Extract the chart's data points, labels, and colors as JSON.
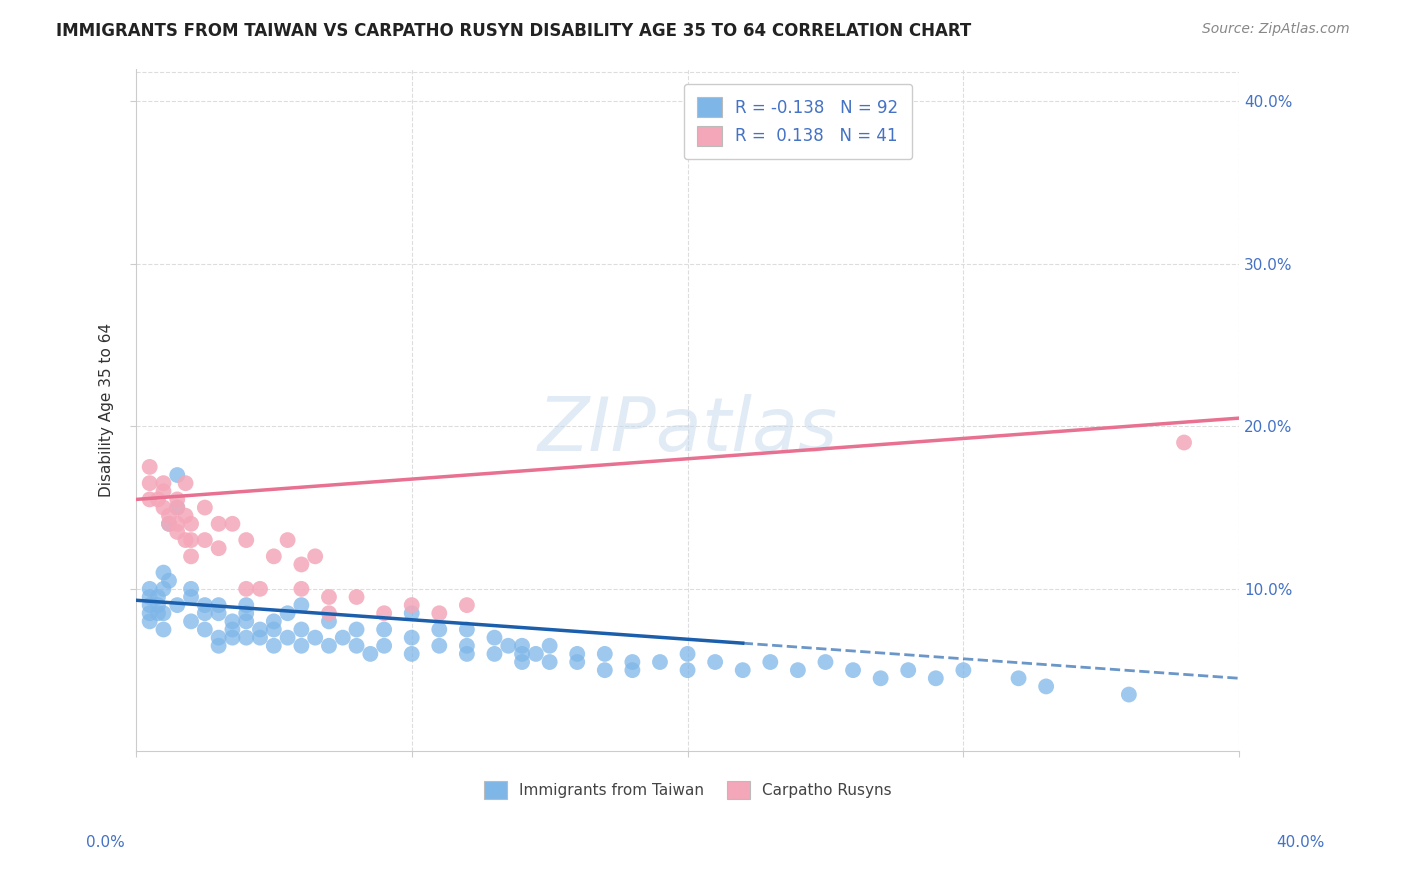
{
  "title": "IMMIGRANTS FROM TAIWAN VS CARPATHO RUSYN DISABILITY AGE 35 TO 64 CORRELATION CHART",
  "source": "Source: ZipAtlas.com",
  "ylabel": "Disability Age 35 to 64",
  "xlim": [
    0.0,
    0.4
  ],
  "ylim": [
    0.0,
    0.42
  ],
  "taiwan_color": "#7EB6E8",
  "carpatho_color": "#F4A7B9",
  "taiwan_line_color": "#1B5EAB",
  "carpatho_line_color": "#E87090",
  "grid_color": "#DDDDDD",
  "taiwan_scatter": {
    "x": [
      0.01,
      0.01,
      0.015,
      0.02,
      0.02,
      0.02,
      0.025,
      0.025,
      0.025,
      0.03,
      0.03,
      0.03,
      0.03,
      0.035,
      0.035,
      0.035,
      0.04,
      0.04,
      0.04,
      0.04,
      0.045,
      0.045,
      0.05,
      0.05,
      0.05,
      0.055,
      0.055,
      0.06,
      0.06,
      0.06,
      0.065,
      0.07,
      0.07,
      0.075,
      0.08,
      0.08,
      0.085,
      0.09,
      0.09,
      0.1,
      0.1,
      0.1,
      0.11,
      0.11,
      0.12,
      0.12,
      0.12,
      0.13,
      0.13,
      0.135,
      0.14,
      0.14,
      0.14,
      0.145,
      0.15,
      0.15,
      0.16,
      0.16,
      0.17,
      0.17,
      0.18,
      0.18,
      0.19,
      0.2,
      0.2,
      0.21,
      0.22,
      0.23,
      0.24,
      0.25,
      0.26,
      0.27,
      0.28,
      0.29,
      0.3,
      0.32,
      0.33,
      0.005,
      0.005,
      0.005,
      0.005,
      0.005,
      0.008,
      0.008,
      0.008,
      0.01,
      0.01,
      0.012,
      0.012,
      0.015,
      0.015,
      0.36
    ],
    "y": [
      0.085,
      0.075,
      0.09,
      0.08,
      0.1,
      0.095,
      0.085,
      0.09,
      0.075,
      0.07,
      0.085,
      0.065,
      0.09,
      0.075,
      0.08,
      0.07,
      0.07,
      0.085,
      0.09,
      0.08,
      0.075,
      0.07,
      0.065,
      0.075,
      0.08,
      0.07,
      0.085,
      0.065,
      0.075,
      0.09,
      0.07,
      0.065,
      0.08,
      0.07,
      0.065,
      0.075,
      0.06,
      0.065,
      0.075,
      0.06,
      0.07,
      0.085,
      0.065,
      0.075,
      0.06,
      0.065,
      0.075,
      0.06,
      0.07,
      0.065,
      0.06,
      0.065,
      0.055,
      0.06,
      0.055,
      0.065,
      0.06,
      0.055,
      0.05,
      0.06,
      0.055,
      0.05,
      0.055,
      0.05,
      0.06,
      0.055,
      0.05,
      0.055,
      0.05,
      0.055,
      0.05,
      0.045,
      0.05,
      0.045,
      0.05,
      0.045,
      0.04,
      0.095,
      0.09,
      0.1,
      0.085,
      0.08,
      0.085,
      0.09,
      0.095,
      0.1,
      0.11,
      0.105,
      0.14,
      0.15,
      0.17,
      0.035
    ]
  },
  "carpatho_scatter": {
    "x": [
      0.005,
      0.005,
      0.005,
      0.008,
      0.01,
      0.01,
      0.01,
      0.012,
      0.012,
      0.015,
      0.015,
      0.015,
      0.018,
      0.018,
      0.02,
      0.02,
      0.02,
      0.025,
      0.025,
      0.03,
      0.03,
      0.035,
      0.04,
      0.04,
      0.045,
      0.05,
      0.055,
      0.06,
      0.06,
      0.065,
      0.07,
      0.07,
      0.08,
      0.09,
      0.1,
      0.11,
      0.12,
      0.015,
      0.018,
      0.38
    ],
    "y": [
      0.155,
      0.165,
      0.175,
      0.155,
      0.16,
      0.15,
      0.165,
      0.145,
      0.14,
      0.135,
      0.14,
      0.15,
      0.13,
      0.145,
      0.12,
      0.13,
      0.14,
      0.15,
      0.13,
      0.14,
      0.125,
      0.14,
      0.1,
      0.13,
      0.1,
      0.12,
      0.13,
      0.1,
      0.115,
      0.12,
      0.085,
      0.095,
      0.095,
      0.085,
      0.09,
      0.085,
      0.09,
      0.155,
      0.165,
      0.19
    ]
  },
  "taiwan_trend": {
    "x_start": 0.0,
    "x_end": 0.4,
    "y_start": 0.093,
    "y_end": 0.045,
    "x_solid_end": 0.22
  },
  "carpatho_trend": {
    "x_start": 0.0,
    "x_end": 0.4,
    "y_start": 0.155,
    "y_end": 0.205
  },
  "yticks": [
    0.1,
    0.2,
    0.3,
    0.4
  ],
  "ytick_labels": [
    "10.0%",
    "20.0%",
    "30.0%",
    "40.0%"
  ],
  "xticks": [
    0.0,
    0.1,
    0.2,
    0.3,
    0.4
  ],
  "blue_color": "#4472C4"
}
